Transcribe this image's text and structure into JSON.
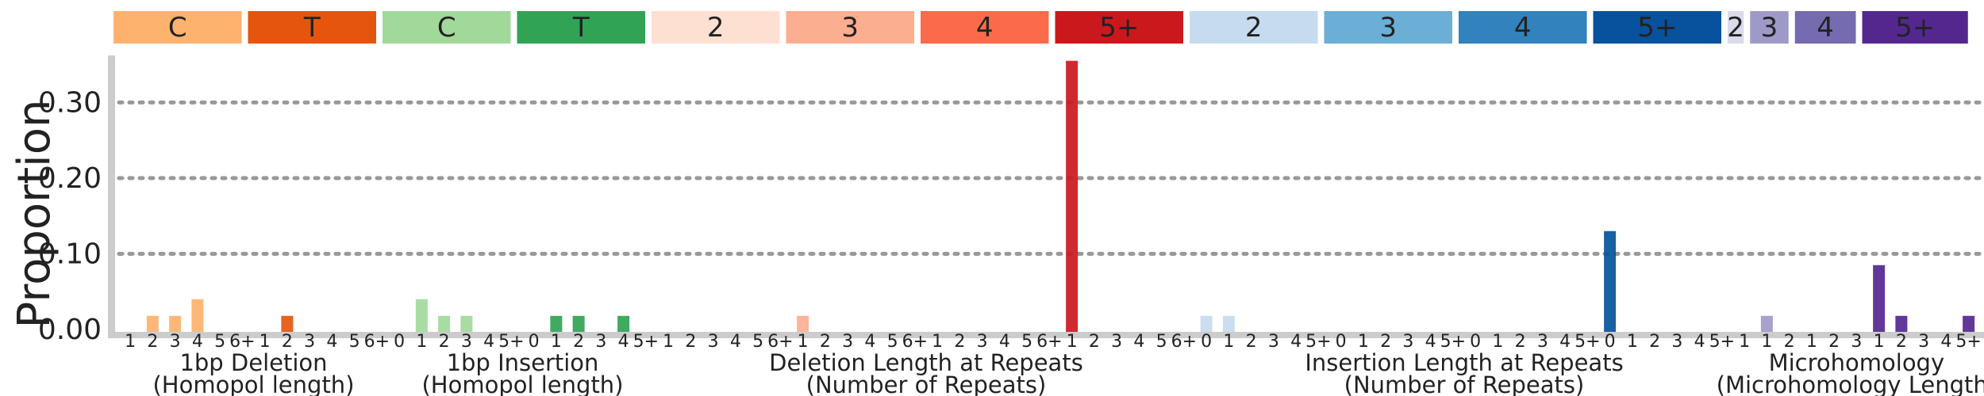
{
  "chart_data": {
    "type": "bar",
    "ylabel": "Proportion",
    "ylim": [
      0,
      0.36
    ],
    "yticks": [
      "0.00",
      "0.10",
      "0.20",
      "0.30"
    ],
    "grid": "horizontal-dotted",
    "top_labels": [
      {
        "text": "C",
        "color": "#FDB26E"
      },
      {
        "text": "T",
        "color": "#E6550D"
      },
      {
        "text": "C",
        "color": "#A1D99B"
      },
      {
        "text": "T",
        "color": "#31A354"
      },
      {
        "text": "2",
        "color": "#FEE0D2"
      },
      {
        "text": "3",
        "color": "#FCAE91"
      },
      {
        "text": "4",
        "color": "#FB6A4A"
      },
      {
        "text": "5+",
        "color": "#CB181D"
      },
      {
        "text": "2",
        "color": "#C6DBEF"
      },
      {
        "text": "3",
        "color": "#6BAED6"
      },
      {
        "text": "4",
        "color": "#3182BD"
      },
      {
        "text": "5+",
        "color": "#08519C"
      },
      {
        "text": "2",
        "color": "#DADAEB"
      },
      {
        "text": "3",
        "color": "#9E9AC8"
      },
      {
        "text": "4",
        "color": "#756BB1"
      },
      {
        "text": "5+",
        "color": "#54278F"
      }
    ],
    "groups": [
      {
        "line1": "1bp Deletion",
        "line2": "(Homopol length)"
      },
      {
        "line1": "1bp Insertion",
        "line2": "(Homopol length)"
      },
      {
        "line1": "Deletion Length at Repeats",
        "line2": "(Number of Repeats)"
      },
      {
        "line1": "Insertion Length at Repeats",
        "line2": "(Number of Repeats)"
      },
      {
        "line1": "Microhomology",
        "line2": "(Microhomology Length)"
      }
    ],
    "categories": [
      "1",
      "2",
      "3",
      "4",
      "5",
      "6+",
      "1",
      "2",
      "3",
      "4",
      "5",
      "6+",
      "0",
      "1",
      "2",
      "3",
      "4",
      "5+",
      "0",
      "1",
      "2",
      "3",
      "4",
      "5+",
      "1",
      "2",
      "3",
      "4",
      "5",
      "6+",
      "1",
      "2",
      "3",
      "4",
      "5",
      "6+",
      "1",
      "2",
      "3",
      "4",
      "5",
      "6+",
      "1",
      "2",
      "3",
      "4",
      "5",
      "6+",
      "0",
      "1",
      "2",
      "3",
      "4",
      "5+",
      "0",
      "1",
      "2",
      "3",
      "4",
      "5+",
      "0",
      "1",
      "2",
      "3",
      "4",
      "5+",
      "0",
      "1",
      "2",
      "3",
      "4",
      "5+",
      "1",
      "1",
      "2",
      "1",
      "2",
      "3",
      "1",
      "2",
      "3",
      "4",
      "5+"
    ],
    "values": [
      0,
      0.018,
      0.018,
      0.04,
      0,
      0,
      0,
      0.018,
      0,
      0,
      0,
      0,
      0,
      0.04,
      0.018,
      0.018,
      0,
      0,
      0,
      0.018,
      0.018,
      0,
      0.018,
      0,
      0,
      0,
      0,
      0,
      0,
      0,
      0.018,
      0,
      0,
      0,
      0,
      0,
      0,
      0,
      0,
      0,
      0,
      0,
      0.355,
      0,
      0,
      0,
      0,
      0,
      0.018,
      0.018,
      0,
      0,
      0,
      0,
      0,
      0,
      0,
      0,
      0,
      0,
      0,
      0,
      0,
      0,
      0,
      0,
      0.13,
      0,
      0,
      0,
      0,
      0,
      0,
      0.018,
      0,
      0,
      0,
      0,
      0.085,
      0.018,
      0,
      0,
      0.018
    ]
  }
}
